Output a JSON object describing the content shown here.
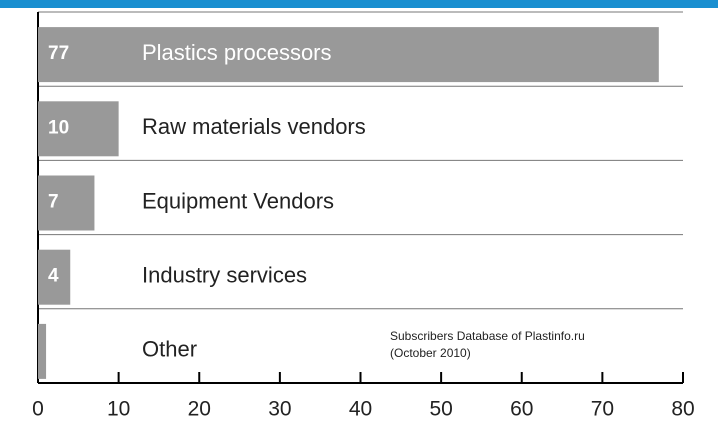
{
  "chart_data": {
    "type": "barh",
    "categories": [
      "Plastics processors",
      "Raw materials vendors",
      "Equipment Vendors",
      "Industry services",
      "Other"
    ],
    "values": [
      77,
      10,
      7,
      4,
      1
    ],
    "value_labels": [
      "77",
      "10",
      "7",
      "4",
      null
    ],
    "color": "#999999",
    "xlim": [
      0,
      80
    ],
    "xticks": [
      0,
      10,
      20,
      30,
      40,
      50,
      60,
      70,
      80
    ],
    "annotation": [
      "Subscribers Database of Plastinfo.ru",
      "(October  2010)"
    ]
  }
}
